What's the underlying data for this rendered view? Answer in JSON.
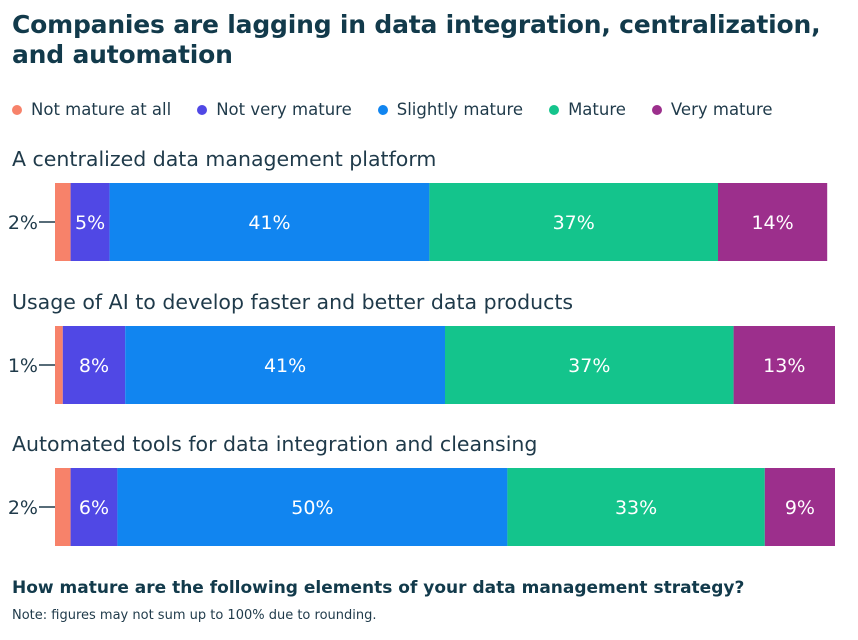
{
  "chart_data": {
    "type": "bar",
    "orientation": "horizontal-stacked",
    "title": "Companies are lagging in data integration, centralization, and automation",
    "series_names": [
      "Not mature at all",
      "Not very mature",
      "Slightly mature",
      "Mature",
      "Very mature"
    ],
    "colors": [
      "#f7826a",
      "#5048e5",
      "#1185f0",
      "#14c48c",
      "#9c2f8c"
    ],
    "categories": [
      "A centralized data management platform",
      "Usage of AI to develop faster and better data products",
      "Automated tools for data integration and cleansing"
    ],
    "series": [
      {
        "name": "Not mature at all",
        "values": [
          2,
          1,
          2
        ]
      },
      {
        "name": "Not very mature",
        "values": [
          5,
          8,
          6
        ]
      },
      {
        "name": "Slightly mature",
        "values": [
          41,
          41,
          50
        ]
      },
      {
        "name": "Mature",
        "values": [
          37,
          37,
          33
        ]
      },
      {
        "name": "Very mature",
        "values": [
          14,
          13,
          9
        ]
      }
    ],
    "value_suffix": "%",
    "legend_position": "top",
    "question": "How mature are the following elements of your data management strategy?",
    "note": "Note: figures may not sum up to 100% due to rounding."
  }
}
